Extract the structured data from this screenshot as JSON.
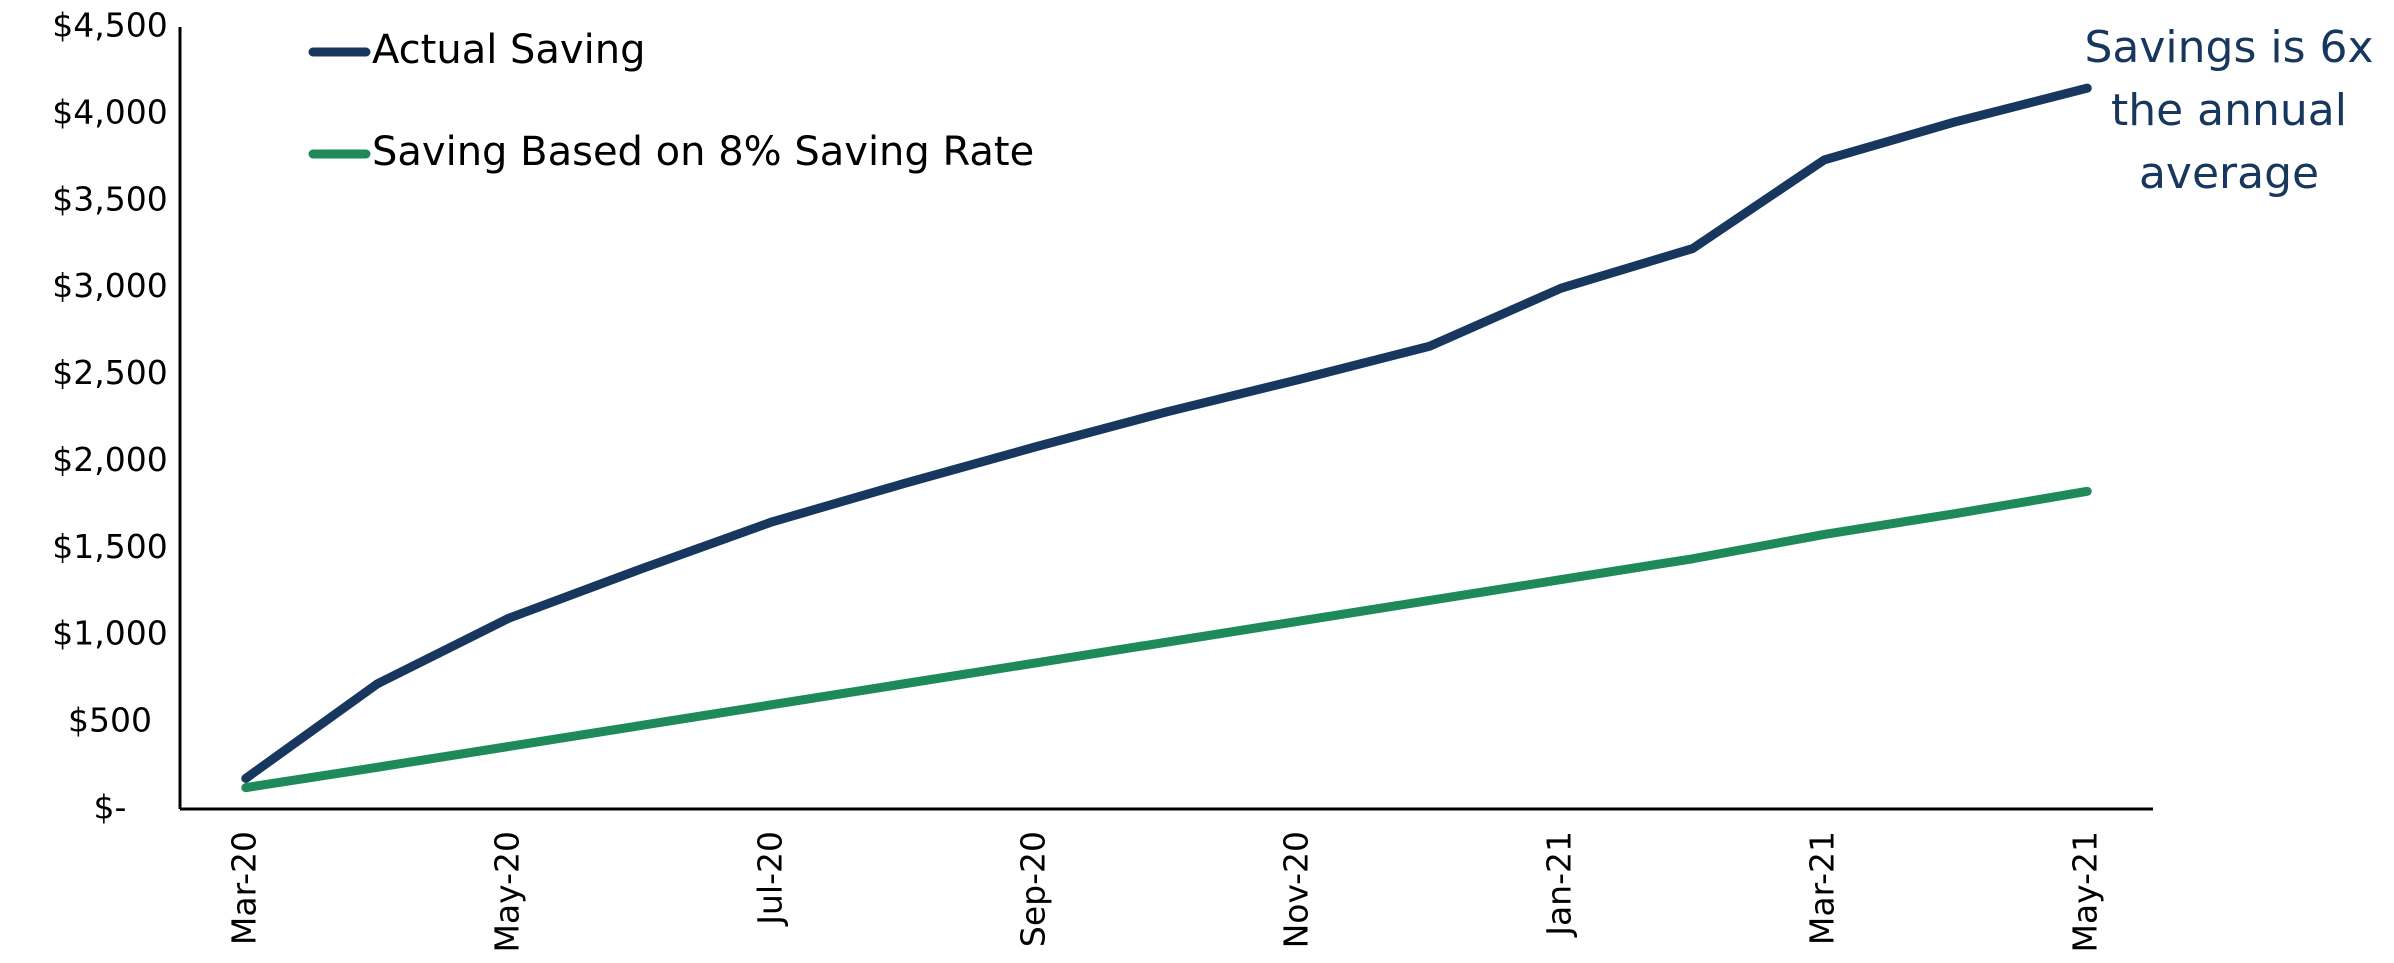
{
  "chart_data": {
    "type": "line",
    "categories": [
      "Mar-20",
      null,
      "May-20",
      null,
      "Jul-20",
      null,
      "Sep-20",
      null,
      "Nov-20",
      null,
      "Jan-21",
      null,
      "Mar-21",
      null,
      "May-21"
    ],
    "series": [
      {
        "name": "Actual Saving",
        "color": "#17375e",
        "values": [
          176,
          720,
          1098,
          1380,
          1652,
          1872,
          2083,
          2285,
          2470,
          2663,
          2997,
          3225,
          3735,
          3955,
          4148
        ]
      },
      {
        "name": "Saving Based on 8% Saving Rate",
        "color": "#1e8a5a",
        "values": [
          123,
          240,
          360,
          480,
          600,
          720,
          840,
          960,
          1080,
          1200,
          1320,
          1440,
          1580,
          1700,
          1828
        ]
      }
    ],
    "ylim": [
      0,
      4500
    ],
    "yticks": [
      {
        "value": 0,
        "label": "$-"
      },
      {
        "value": 500,
        "label": "$500"
      },
      {
        "value": 1000,
        "label": "$1,000"
      },
      {
        "value": 1500,
        "label": "$1,500"
      },
      {
        "value": 2000,
        "label": "$2,000"
      },
      {
        "value": 2500,
        "label": "$2,500"
      },
      {
        "value": 3000,
        "label": "$3,000"
      },
      {
        "value": 3500,
        "label": "$3,500"
      },
      {
        "value": 4000,
        "label": "$4,000"
      },
      {
        "value": 4500,
        "label": "$4,500"
      }
    ],
    "grid": false,
    "legend": "upper left",
    "annotation": [
      "Savings is 6x",
      "the annual",
      "average"
    ]
  }
}
